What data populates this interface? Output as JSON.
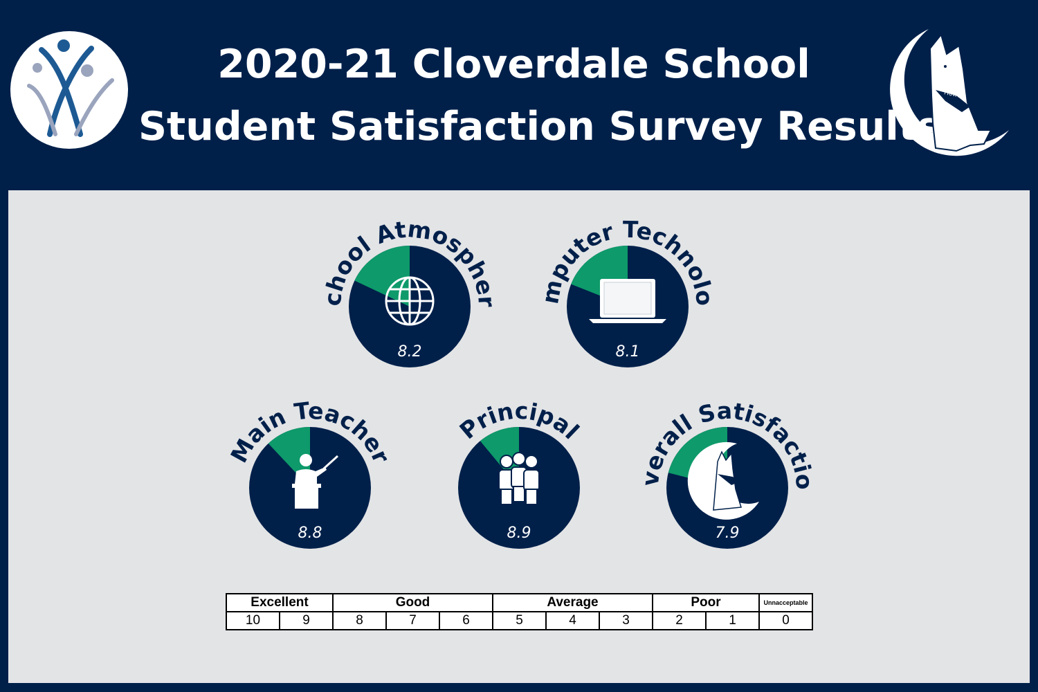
{
  "header": {
    "title_line1": "2020-21 Cloverdale School",
    "title_line2": "Student Satisfaction Survey Results",
    "mascot_label": "Howler"
  },
  "colors": {
    "navy": "#00204a",
    "green": "#0e9a6a",
    "panel": "#e3e4e6"
  },
  "chart_data": {
    "type": "pie",
    "scale_max": 10,
    "series": [
      {
        "label": "School Atmosphere",
        "value": 8.2,
        "value_text": "8.2",
        "icon": "globe-icon"
      },
      {
        "label": "Computer Technology",
        "value": 8.1,
        "value_text": "8.1",
        "icon": "laptop-icon"
      },
      {
        "label": "Main Teacher",
        "value": 8.8,
        "value_text": "8.8",
        "icon": "teacher-icon"
      },
      {
        "label": "Principal",
        "value": 8.9,
        "value_text": "8.9",
        "icon": "people-group-icon"
      },
      {
        "label": "Overall Satisfaction",
        "value": 7.9,
        "value_text": "7.9",
        "icon": "wolf-mascot-icon"
      }
    ]
  },
  "scale": {
    "categories": [
      "Excellent",
      "Good",
      "Average",
      "Poor",
      "Unnacceptable"
    ],
    "numbers": [
      "10",
      "9",
      "8",
      "7",
      "6",
      "5",
      "4",
      "3",
      "2",
      "1",
      "0"
    ]
  }
}
